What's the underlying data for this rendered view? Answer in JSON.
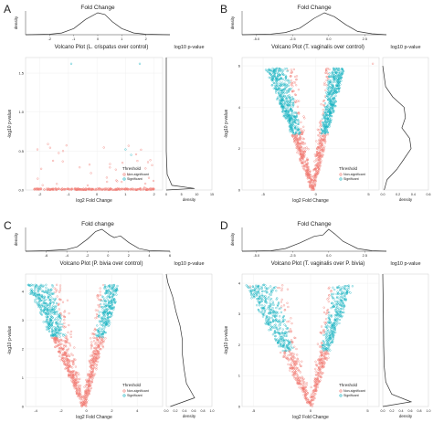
{
  "figure": {
    "background": "#ffffff",
    "colors": {
      "non_significant": "#f07a72",
      "significant": "#19b3c1",
      "density_line": "#333333",
      "axis": "#444444",
      "text": "#222222"
    }
  },
  "chart_data": [
    {
      "panel_letter": "A",
      "type": "scatter",
      "title": "Volcano Plot (L. crispatus over control)",
      "top_density": {
        "title": "Fold Change",
        "ylabel": "density",
        "xlim": [
          -3,
          3
        ],
        "xticks": [
          "-2",
          "-1",
          "0",
          "1",
          "2"
        ],
        "curve": [
          [
            -3,
            0.0
          ],
          [
            -2,
            0.02
          ],
          [
            -1.5,
            0.08
          ],
          [
            -1,
            0.28
          ],
          [
            -0.5,
            0.7
          ],
          [
            0,
            1.0
          ],
          [
            0.3,
            0.92
          ],
          [
            0.6,
            0.6
          ],
          [
            1,
            0.28
          ],
          [
            1.5,
            0.08
          ],
          [
            2,
            0.02
          ],
          [
            3,
            0.0
          ]
        ]
      },
      "xlabel": "log2 Fold Change",
      "ylabel": "-log10 p-value",
      "xlim": [
        -2.5,
        2.3
      ],
      "ylim": [
        0,
        1.7
      ],
      "xticks": [
        "-2",
        "-1",
        "0",
        "1",
        "2"
      ],
      "yticks": [
        "0.0",
        "0.5",
        "1.0",
        "1.5"
      ],
      "points": {
        "significant": [
          [
            -0.9,
            1.62
          ],
          [
            1.5,
            1.62
          ],
          [
            1.0,
            0.52
          ],
          [
            1.2,
            0.45
          ]
        ],
        "non_significant_count": 300,
        "non_significant_seed": 7
      },
      "legend": {
        "title": "Threshold",
        "items": [
          "Non-significant",
          "Significant"
        ]
      },
      "right_density": {
        "title": "log10 p-value",
        "xlabel": "density",
        "xlim": [
          0,
          15
        ],
        "xticks": [
          "0",
          "5",
          "10",
          "15"
        ],
        "curve": [
          [
            0,
            0.0
          ],
          [
            0.02,
            0.3
          ],
          [
            0.06,
            0.06
          ],
          [
            0.2,
            0.01
          ],
          [
            0.5,
            0.0
          ],
          [
            1.0,
            0.0
          ],
          [
            1.7,
            0.0
          ]
        ]
      }
    },
    {
      "panel_letter": "B",
      "type": "scatter",
      "title": "Volcano Plot (T. vaginalis over control)",
      "top_density": {
        "title": "Fold Change",
        "ylabel": "density",
        "xlim": [
          -6,
          4
        ],
        "xticks": [
          "-5.0",
          "-2.5",
          "0.0",
          "2.5"
        ],
        "curve": [
          [
            -6,
            0.0
          ],
          [
            -4,
            0.03
          ],
          [
            -3,
            0.1
          ],
          [
            -2,
            0.3
          ],
          [
            -1,
            0.75
          ],
          [
            -0.3,
            1.0
          ],
          [
            0.4,
            0.82
          ],
          [
            1.2,
            0.45
          ],
          [
            2,
            0.15
          ],
          [
            3,
            0.04
          ],
          [
            4,
            0.0
          ]
        ]
      },
      "xlabel": "log2 Fold Change",
      "ylabel": "-log10 p-value",
      "xlim": [
        -7,
        6
      ],
      "ylim": [
        0,
        6.4
      ],
      "xticks": [
        "-5",
        "0",
        "5"
      ],
      "yticks": [
        "0",
        "2",
        "4",
        "6"
      ],
      "points": {
        "count": 1400,
        "seed": 11,
        "v_shape": {
          "center": -0.3,
          "slope_left": 1.35,
          "slope_right": 2.0,
          "threshold": 2.7
        },
        "outlier": [
          5.4,
          6.1
        ]
      },
      "legend": {
        "title": "Threshold",
        "items": [
          "Non-significant",
          "Significant"
        ]
      },
      "right_density": {
        "title": "log10 p-value",
        "xlabel": "density",
        "xlim": [
          0,
          0.6
        ],
        "xticks": [
          "0.0",
          "0.2",
          "0.4",
          "0.6"
        ],
        "curve": [
          [
            0,
            0.02
          ],
          [
            0.5,
            0.06
          ],
          [
            1,
            0.2
          ],
          [
            1.5,
            0.3
          ],
          [
            2,
            0.4
          ],
          [
            2.5,
            0.38
          ],
          [
            3,
            0.27
          ],
          [
            3.5,
            0.32
          ],
          [
            4,
            0.3
          ],
          [
            4.5,
            0.14
          ],
          [
            5,
            0.04
          ],
          [
            6,
            0.0
          ]
        ]
      }
    },
    {
      "panel_letter": "C",
      "type": "scatter",
      "title": "Volcano Plot (P. bivia over control)",
      "top_density": {
        "title": "Fold change",
        "ylabel": "density",
        "xlim": [
          -8,
          6
        ],
        "xticks": [
          "-6",
          "-4",
          "-2",
          "0",
          "2",
          "4",
          "6"
        ],
        "curve": [
          [
            -8,
            0.0
          ],
          [
            -6,
            0.02
          ],
          [
            -4,
            0.08
          ],
          [
            -3,
            0.2
          ],
          [
            -2,
            0.55
          ],
          [
            -1.2,
            0.9
          ],
          [
            -0.6,
            1.0
          ],
          [
            0.2,
            0.72
          ],
          [
            0.6,
            0.62
          ],
          [
            1.2,
            0.7
          ],
          [
            2,
            0.4
          ],
          [
            3,
            0.12
          ],
          [
            4,
            0.03
          ],
          [
            6,
            0.0
          ]
        ]
      },
      "xlabel": "log2 Fold Change",
      "ylabel": "-log10 p-value",
      "xlim": [
        -4.8,
        6
      ],
      "ylim": [
        0,
        4.6
      ],
      "xticks": [
        "-4",
        "-2",
        "0",
        "2",
        "4"
      ],
      "yticks": [
        "0",
        "1",
        "2",
        "3",
        "4"
      ],
      "points": {
        "count": 1300,
        "seed": 23,
        "v_shape": {
          "center": -0.2,
          "slope_left": 0.95,
          "slope_right": 1.5,
          "threshold": 2.4
        }
      },
      "legend": {
        "title": "Threshold",
        "items": [
          "Non-significant",
          "Significant"
        ]
      },
      "right_density": {
        "title": "log10 p-value",
        "xlabel": "density",
        "xlim": [
          0,
          1.0
        ],
        "xticks": [
          "0.0",
          "0.2",
          "0.4",
          "0.6",
          "0.8",
          "1.0"
        ],
        "curve": [
          [
            0,
            0.05
          ],
          [
            0.3,
            0.35
          ],
          [
            0.8,
            0.25
          ],
          [
            1.3,
            0.22
          ],
          [
            1.8,
            0.2
          ],
          [
            2.3,
            0.2
          ],
          [
            2.8,
            0.17
          ],
          [
            3.3,
            0.12
          ],
          [
            3.8,
            0.08
          ],
          [
            4.3,
            0.02
          ],
          [
            4.6,
            0.0
          ]
        ]
      }
    },
    {
      "panel_letter": "D",
      "type": "scatter",
      "title": "Volcano Plot (T. vaginalis over P. bivia)",
      "top_density": {
        "title": "Fold Change",
        "ylabel": "density",
        "xlim": [
          -6,
          4
        ],
        "xticks": [
          "-5.0",
          "-2.5",
          "0.0",
          "2.5"
        ],
        "curve": [
          [
            -6,
            0.0
          ],
          [
            -4,
            0.02
          ],
          [
            -3,
            0.12
          ],
          [
            -2,
            0.38
          ],
          [
            -1,
            0.68
          ],
          [
            -0.4,
            0.74
          ],
          [
            0,
            1.0
          ],
          [
            0.4,
            0.8
          ],
          [
            1,
            0.45
          ],
          [
            2,
            0.12
          ],
          [
            3,
            0.02
          ],
          [
            4,
            0.0
          ]
        ]
      },
      "xlabel": "log2 Fold Change",
      "ylabel": "-log10 p-value",
      "xlim": [
        -6,
        6
      ],
      "ylim": [
        0,
        4.3
      ],
      "xticks": [
        "-5",
        "0",
        "5"
      ],
      "yticks": [
        "0",
        "1",
        "2",
        "3",
        "4"
      ],
      "points": {
        "count": 1100,
        "seed": 37,
        "v_shape": {
          "center": 0.0,
          "slope_left": 0.7,
          "slope_right": 1.1,
          "threshold": 1.8
        },
        "outlier": [
          -5.3,
          3.9
        ]
      },
      "legend": {
        "title": "Threshold",
        "items": [
          "Non-significant",
          "Significant"
        ]
      },
      "right_density": {
        "title": "log10 p-value",
        "xlabel": "density",
        "xlim": [
          0,
          1.0
        ],
        "xticks": [
          "0.0",
          "0.2",
          "0.4",
          "0.6",
          "0.8",
          "1.0"
        ],
        "curve": [
          [
            0,
            0.0
          ],
          [
            0.15,
            0.95
          ],
          [
            0.4,
            0.3
          ],
          [
            0.8,
            0.1
          ],
          [
            1.3,
            0.05
          ],
          [
            2,
            0.03
          ],
          [
            3,
            0.02
          ],
          [
            4.3,
            0.0
          ]
        ]
      }
    }
  ]
}
